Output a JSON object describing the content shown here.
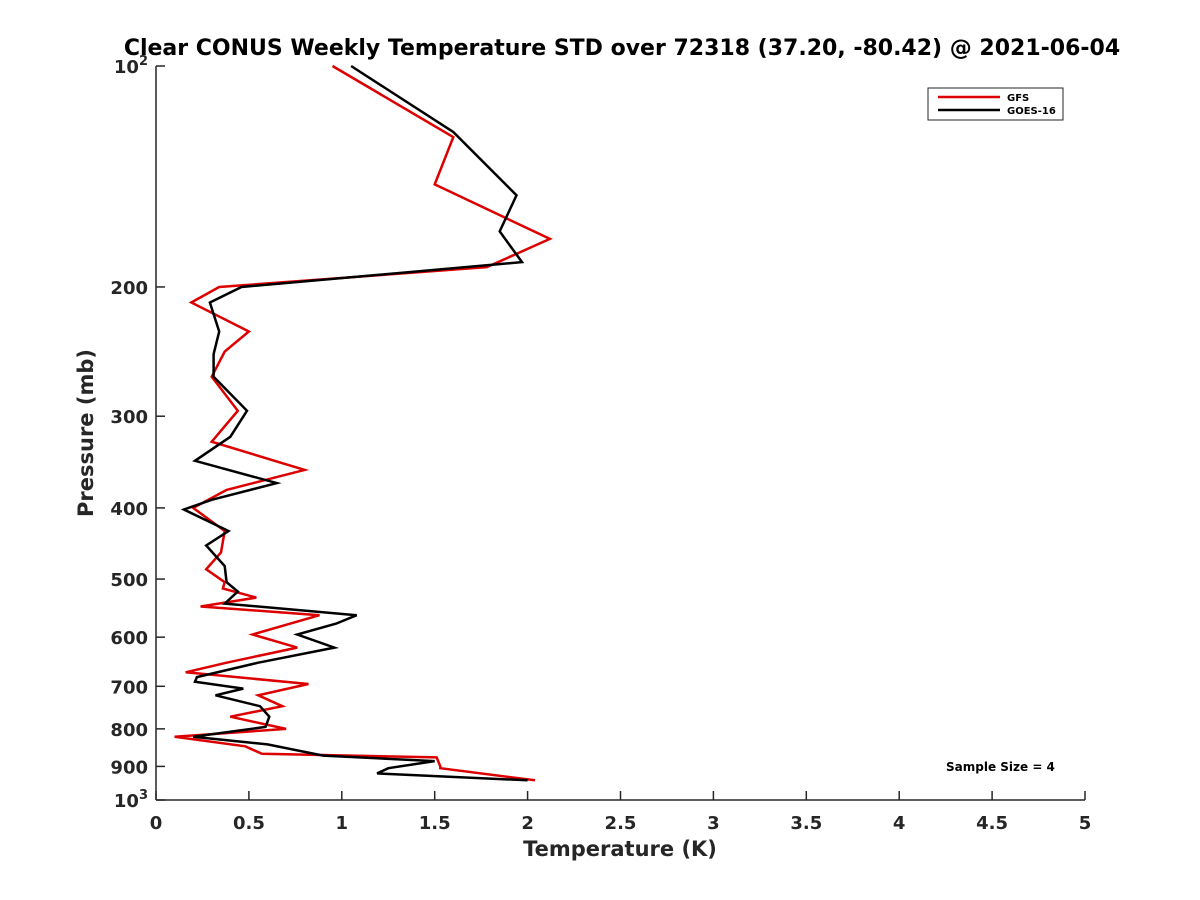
{
  "chart_data": {
    "type": "line",
    "title": "Clear CONUS Weekly Temperature STD over 72318 (37.20, -80.42) @ 2021-06-04",
    "xlabel": "Temperature (K)",
    "ylabel": "Pressure (mb)",
    "xlim": [
      0,
      5
    ],
    "ylim": [
      100,
      1000
    ],
    "yscale": "log",
    "y_reversed": true,
    "xticks": [
      0,
      0.5,
      1,
      1.5,
      2,
      2.5,
      3,
      3.5,
      4,
      4.5,
      5
    ],
    "xtick_labels": [
      "0",
      "0.5",
      "1",
      "1.5",
      "2",
      "2.5",
      "3",
      "3.5",
      "4",
      "4.5",
      "5"
    ],
    "yticks": [
      100,
      200,
      300,
      400,
      500,
      600,
      700,
      800,
      900,
      1000
    ],
    "ytick_labels": [
      {
        "base": "10",
        "exp": "2"
      },
      {
        "base": "200",
        "exp": ""
      },
      {
        "base": "300",
        "exp": ""
      },
      {
        "base": "400",
        "exp": ""
      },
      {
        "base": "500",
        "exp": ""
      },
      {
        "base": "600",
        "exp": ""
      },
      {
        "base": "700",
        "exp": ""
      },
      {
        "base": "800",
        "exp": ""
      },
      {
        "base": "900",
        "exp": ""
      },
      {
        "base": "10",
        "exp": "3"
      }
    ],
    "grid": false,
    "legend_position": "top-right",
    "annotation": "Sample Size = 4",
    "series": [
      {
        "name": "GFS",
        "color": "#dd0000",
        "x": [
          0.95,
          1.6,
          1.5,
          2.12,
          1.78,
          0.34,
          0.19,
          0.5,
          0.37,
          0.3,
          0.44,
          0.3,
          0.8,
          0.38,
          0.2,
          0.37,
          0.35,
          0.27,
          0.37,
          0.36,
          0.54,
          0.24,
          0.88,
          0.52,
          0.76,
          0.38,
          0.16,
          0.82,
          0.55,
          0.68,
          0.4,
          0.7,
          0.1,
          0.48,
          0.57,
          1.51,
          1.53,
          1.53,
          2.04
        ],
        "y": [
          100,
          125,
          145,
          172,
          188,
          200,
          210,
          230,
          245,
          265,
          295,
          325,
          355,
          378,
          400,
          430,
          460,
          485,
          505,
          515,
          530,
          545,
          560,
          595,
          620,
          650,
          670,
          695,
          720,
          745,
          770,
          800,
          820,
          845,
          865,
          875,
          900,
          905,
          940
        ]
      },
      {
        "name": "GOES-16",
        "color": "#000000",
        "x": [
          1.05,
          1.6,
          1.94,
          1.85,
          1.97,
          0.46,
          0.29,
          0.34,
          0.31,
          0.31,
          0.49,
          0.4,
          0.21,
          0.65,
          0.3,
          0.15,
          0.39,
          0.27,
          0.37,
          0.38,
          0.44,
          0.37,
          1.08,
          0.97,
          0.76,
          0.96,
          0.55,
          0.22,
          0.21,
          0.47,
          0.32,
          0.56,
          0.61,
          0.59,
          0.2,
          0.6,
          0.9,
          1.5,
          1.25,
          1.19,
          2.0
        ],
        "y": [
          100,
          123,
          150,
          168,
          185,
          200,
          210,
          230,
          247,
          265,
          295,
          320,
          345,
          370,
          390,
          402,
          430,
          450,
          480,
          505,
          520,
          540,
          560,
          575,
          595,
          620,
          650,
          680,
          690,
          705,
          720,
          745,
          770,
          795,
          820,
          840,
          870,
          885,
          905,
          920,
          940
        ]
      }
    ]
  }
}
